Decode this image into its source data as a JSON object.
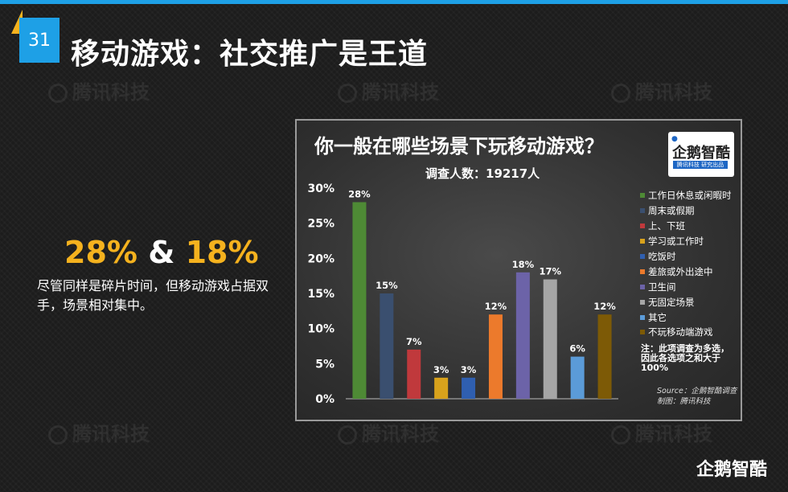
{
  "header": {
    "page_number": "31",
    "title": "移动游戏：社交推广是王道"
  },
  "watermark": {
    "text": "腾讯科技"
  },
  "highlight": {
    "part1": "28%",
    "part2": "&",
    "part3": "18%",
    "description": "尽管同样是碎片时间，但移动游戏占据双手，场景相对集中。"
  },
  "chart_panel": {
    "title": "你一般在哪些场景下玩移动游戏？",
    "subtitle": "调查人数：19217人",
    "logo_text": "企鹅智酷",
    "logo_subtext": "腾讯科技  研究出品",
    "note": "注：此项调查为多选，因此各选项之和大于100%",
    "source_line1": "Source：企鹅智酷调查",
    "source_line2": "制图：腾讯科技"
  },
  "chart_data": {
    "type": "bar",
    "title": "你一般在哪些场景下玩移动游戏？",
    "subtitle": "调查人数：19217人",
    "categories": [
      "工作日休息或闲暇时",
      "周末或假期",
      "上、下班",
      "学习或工作时",
      "吃饭时",
      "差旅或外出途中",
      "卫生间",
      "无固定场景",
      "其它",
      "不玩移动端游戏"
    ],
    "values": [
      28,
      15,
      7,
      3,
      3,
      12,
      18,
      17,
      6,
      12
    ],
    "value_labels": [
      "28%",
      "15%",
      "7%",
      "3%",
      "3%",
      "12%",
      "18%",
      "17%",
      "6%",
      "12%"
    ],
    "colors": [
      "#4e8a35",
      "#3a4f6f",
      "#c0393c",
      "#d8a21c",
      "#2f5fb0",
      "#ec7a2c",
      "#6c63a8",
      "#a6a6a6",
      "#5b9bd8",
      "#7d5a06"
    ],
    "ylim": [
      0,
      30
    ],
    "yticks": [
      "0%",
      "5%",
      "10%",
      "15%",
      "20%",
      "25%",
      "30%"
    ],
    "legend_position": "right",
    "grid": false
  },
  "footer": {
    "brand": "企鹅智酷"
  }
}
